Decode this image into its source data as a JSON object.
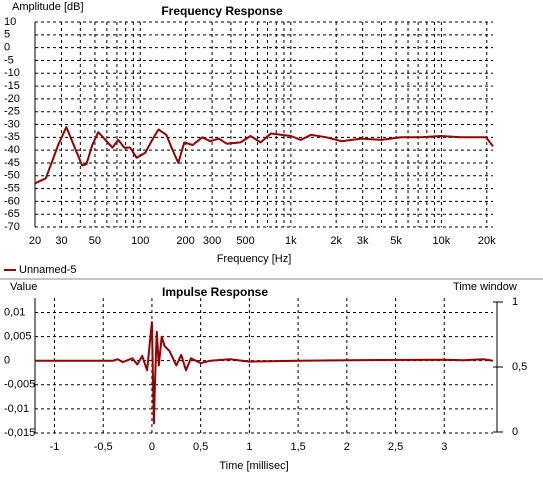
{
  "chart_data": [
    {
      "type": "line",
      "title": "Frequency Response",
      "y_label": "Amplitude [dB]",
      "x_label": "Frequency [Hz]",
      "log_x": true,
      "grid": true,
      "xlim": [
        20,
        22000
      ],
      "xticks": [
        20,
        30,
        50,
        100,
        200,
        300,
        500,
        {
          "value": 1000,
          "label": "1k"
        },
        {
          "value": 2000,
          "label": "2k"
        },
        {
          "value": 3000,
          "label": "3k"
        },
        {
          "value": 5000,
          "label": "5k"
        },
        {
          "value": 10000,
          "label": "10k"
        },
        {
          "value": 20000,
          "label": "20k"
        }
      ],
      "xminor": [
        40,
        60,
        70,
        80,
        90,
        400,
        600,
        700,
        800,
        900,
        4000,
        6000,
        7000,
        8000,
        9000
      ],
      "ylim": [
        -70,
        10
      ],
      "yticks": [
        10,
        5,
        0,
        -5,
        -10,
        -15,
        -20,
        -25,
        -30,
        -35,
        -40,
        -45,
        -50,
        -55,
        -60,
        -65,
        -70
      ],
      "x": [
        20,
        23.6,
        28.5,
        32.3,
        35,
        41.1,
        43.9,
        48,
        52.6,
        57.6,
        65.3,
        71.4,
        78.3,
        85.8,
        94.6,
        108,
        120,
        132,
        149,
        164,
        179,
        196,
        223,
        258,
        292,
        333,
        375,
        463,
        540,
        631,
        736,
        1000,
        1167,
        1360,
        1723,
        2170,
        2940,
        3980,
        5400,
        7300,
        9950,
        13460,
        19800,
        22000
      ],
      "series": [
        {
          "name": "Unnamed-5",
          "color": "#990000",
          "values": [
            -53,
            -51,
            -38,
            -31,
            -36,
            -46,
            -45.5,
            -38,
            -33,
            -35.5,
            -39,
            -36,
            -39,
            -39,
            -43,
            -41,
            -36,
            -32,
            -34,
            -40,
            -45,
            -37,
            -38,
            -35,
            -36.5,
            -35.5,
            -37.5,
            -37,
            -34.5,
            -37,
            -33.5,
            -34.5,
            -36,
            -34,
            -35,
            -36.5,
            -35.5,
            -36,
            -35,
            -35,
            -34.5,
            -35,
            -35,
            -38.5
          ]
        }
      ]
    },
    {
      "type": "line",
      "title": "Impulse Response",
      "y_label": "Value",
      "y2_label": "Time window",
      "x_label": "Time [millisec]",
      "grid": true,
      "xlim": [
        -1.2,
        3.5
      ],
      "xticks": [
        -1,
        {
          "value": -0.5,
          "label": "-0,5"
        },
        0,
        {
          "value": 0.5,
          "label": "0,5"
        },
        1,
        {
          "value": 1.5,
          "label": "1,5"
        },
        2,
        {
          "value": 2.5,
          "label": "2,5"
        },
        3
      ],
      "ylim": [
        -0.015,
        0.013
      ],
      "yticks": [
        {
          "value": 0.01,
          "label": "0,01"
        },
        {
          "value": 0.005,
          "label": "0,005"
        },
        0,
        {
          "value": -0.005,
          "label": "-0,005"
        },
        {
          "value": -0.01,
          "label": "-0,01"
        },
        {
          "value": -0.015,
          "label": "-0,015"
        }
      ],
      "y2lim": [
        0,
        1
      ],
      "y2ticks": [
        1,
        {
          "value": 0.5,
          "label": "0,5"
        },
        0
      ],
      "x": [
        -1.2,
        -0.4,
        -0.35,
        -0.3,
        -0.2,
        -0.15,
        -0.1,
        -0.05,
        -0.02,
        0,
        0.01,
        0.02,
        0.03,
        0.05,
        0.07,
        0.1,
        0.13,
        0.18,
        0.25,
        0.3,
        0.35,
        0.4,
        0.5,
        0.6,
        0.8,
        1.0,
        1.5,
        2.0,
        3.0,
        3.2,
        3.4,
        3.5
      ],
      "series": [
        {
          "name": "Unnamed-5",
          "color": "#990000",
          "values": [
            0,
            0,
            0.0003,
            -0.0003,
            0.0005,
            -0.0008,
            0.001,
            -0.002,
            0.004,
            0.008,
            -0.003,
            -0.013,
            -0.005,
            0.006,
            -0.001,
            0.005,
            0.003,
            0.002,
            -0.001,
            0.0012,
            -0.002,
            0.0005,
            -0.0005,
            0,
            0.0003,
            -0.0002,
            0,
            0.0001,
            0.0002,
            0.0001,
            0.0003,
            0
          ]
        }
      ]
    }
  ]
}
